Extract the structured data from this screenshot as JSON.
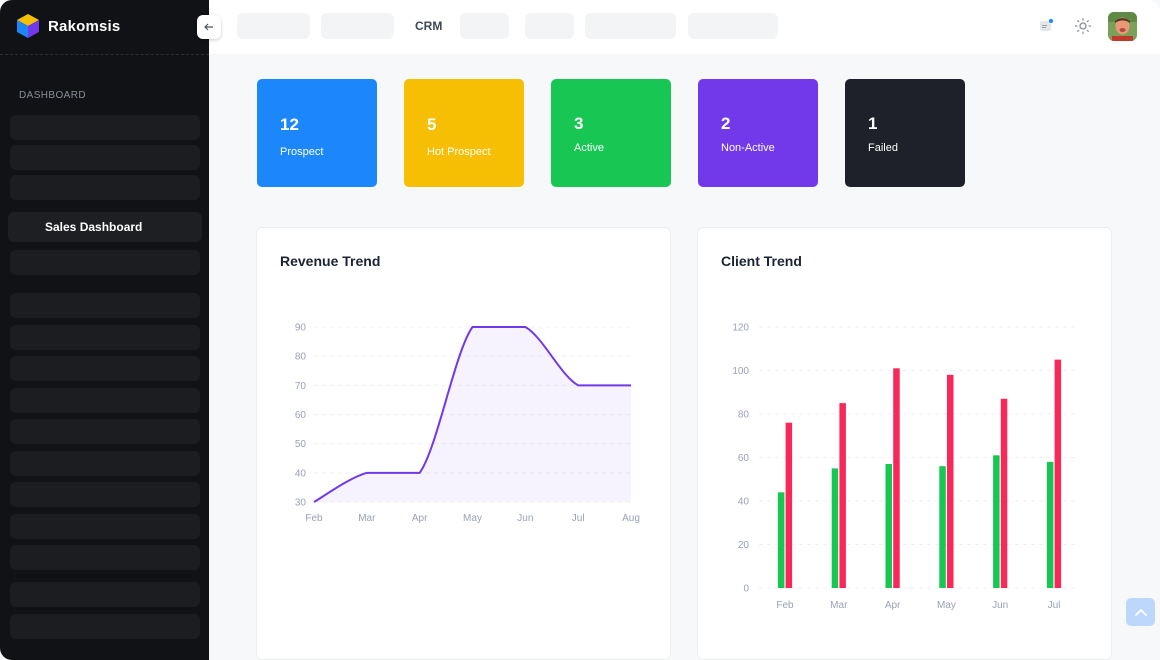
{
  "app": {
    "name": "Rakomsis"
  },
  "sidebar": {
    "section_title": "DASHBOARD",
    "active_item": "Sales Dashboard"
  },
  "topbar": {
    "crm_label": "CRM"
  },
  "stats": [
    {
      "value": "12",
      "label": "Prospect",
      "color": "#1c87fa"
    },
    {
      "value": "5",
      "label": "Hot Prospect",
      "color": "#f6bf03"
    },
    {
      "value": "3",
      "label": "Active",
      "color": "#17c653"
    },
    {
      "value": "2",
      "label": "Non-Active",
      "color": "#7239ea"
    },
    {
      "value": "1",
      "label": "Failed",
      "color": "#1e2129"
    }
  ],
  "revenue_panel": {
    "title": "Revenue Trend"
  },
  "client_panel": {
    "title": "Client Trend"
  },
  "chart_data": [
    {
      "type": "area",
      "title": "Revenue Trend",
      "categories": [
        "Feb",
        "Mar",
        "Apr",
        "May",
        "Jun",
        "Jul",
        "Aug"
      ],
      "values": [
        30,
        40,
        40,
        90,
        90,
        70,
        70
      ],
      "yticks": [
        30,
        40,
        50,
        60,
        70,
        80,
        90
      ],
      "ylim": [
        30,
        90
      ],
      "grid": true,
      "color": "#7239ea"
    },
    {
      "type": "bar",
      "title": "Client Trend",
      "categories": [
        "Feb",
        "Mar",
        "Apr",
        "May",
        "Jun",
        "Jul"
      ],
      "series": [
        {
          "values": [
            44,
            55,
            57,
            56,
            61,
            58
          ],
          "color": "#17c653"
        },
        {
          "values": [
            76,
            85,
            101,
            98,
            87,
            105
          ],
          "color": "#f8285a"
        }
      ],
      "yticks": [
        0,
        20,
        40,
        60,
        80,
        100,
        120
      ],
      "ylim": [
        0,
        120
      ],
      "grid": true
    }
  ]
}
